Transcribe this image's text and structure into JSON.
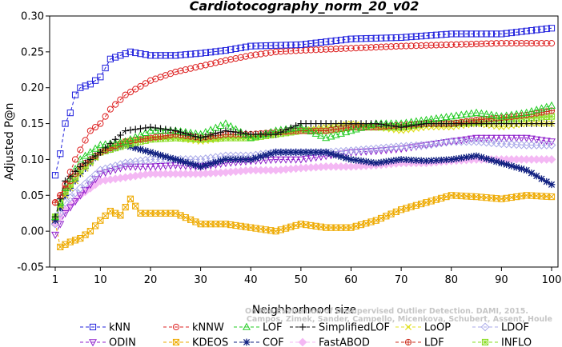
{
  "chart_data": {
    "type": "line",
    "title": "Cardiotocography_norm_20_v02",
    "xlabel": "Neighborhood size",
    "ylabel": "Adjusted P@n",
    "xlim": [
      1,
      100
    ],
    "ylim": [
      -0.05,
      0.3
    ],
    "x_ticks": [
      1,
      10,
      20,
      30,
      40,
      50,
      60,
      70,
      80,
      90,
      100
    ],
    "y_ticks": [
      "-0.05",
      "0.00",
      "0.05",
      "0.10",
      "0.15",
      "0.20",
      "0.25",
      "0.30"
    ],
    "x": {
      "start": 1,
      "end": 100,
      "step": 1
    },
    "watermark": [
      "Campos, Zimek, Sander, Campello, Micenkova, Schubert, Assent, Houle",
      "On the Evaluation of Unsupervised Outlier Detection. DAMI, 2015."
    ],
    "series": [
      {
        "name": "kNN",
        "color": "#2020dd",
        "marker": "square",
        "dash": "4,3",
        "keypoints": [
          [
            1,
            0.078
          ],
          [
            2,
            0.108
          ],
          [
            3,
            0.15
          ],
          [
            4,
            0.165
          ],
          [
            5,
            0.19
          ],
          [
            6,
            0.2
          ],
          [
            8,
            0.205
          ],
          [
            10,
            0.215
          ],
          [
            12,
            0.24
          ],
          [
            14,
            0.245
          ],
          [
            16,
            0.25
          ],
          [
            20,
            0.245
          ],
          [
            25,
            0.245
          ],
          [
            30,
            0.248
          ],
          [
            35,
            0.252
          ],
          [
            40,
            0.258
          ],
          [
            50,
            0.26
          ],
          [
            60,
            0.268
          ],
          [
            70,
            0.27
          ],
          [
            80,
            0.275
          ],
          [
            90,
            0.275
          ],
          [
            100,
            0.283
          ]
        ]
      },
      {
        "name": "kNNW",
        "color": "#dd2020",
        "marker": "circle",
        "dash": "4,3",
        "keypoints": [
          [
            1,
            0.04
          ],
          [
            2,
            0.05
          ],
          [
            3,
            0.065
          ],
          [
            5,
            0.1
          ],
          [
            8,
            0.14
          ],
          [
            10,
            0.15
          ],
          [
            12,
            0.17
          ],
          [
            15,
            0.19
          ],
          [
            20,
            0.21
          ],
          [
            25,
            0.222
          ],
          [
            30,
            0.23
          ],
          [
            35,
            0.238
          ],
          [
            40,
            0.245
          ],
          [
            45,
            0.25
          ],
          [
            50,
            0.252
          ],
          [
            60,
            0.255
          ],
          [
            70,
            0.258
          ],
          [
            80,
            0.26
          ],
          [
            90,
            0.262
          ],
          [
            100,
            0.262
          ]
        ]
      },
      {
        "name": "LOF",
        "color": "#22cc22",
        "marker": "triangle",
        "dash": "4,3",
        "keypoints": [
          [
            1,
            0.02
          ],
          [
            3,
            0.06
          ],
          [
            6,
            0.1
          ],
          [
            10,
            0.12
          ],
          [
            15,
            0.125
          ],
          [
            20,
            0.14
          ],
          [
            25,
            0.14
          ],
          [
            30,
            0.135
          ],
          [
            35,
            0.15
          ],
          [
            40,
            0.13
          ],
          [
            45,
            0.14
          ],
          [
            50,
            0.145
          ],
          [
            55,
            0.13
          ],
          [
            60,
            0.14
          ],
          [
            65,
            0.15
          ],
          [
            70,
            0.15
          ],
          [
            75,
            0.155
          ],
          [
            80,
            0.16
          ],
          [
            85,
            0.165
          ],
          [
            90,
            0.16
          ],
          [
            95,
            0.165
          ],
          [
            100,
            0.175
          ]
        ]
      },
      {
        "name": "SimplifiedLOF",
        "color": "#111111",
        "marker": "plus",
        "dash": "4,3",
        "keypoints": [
          [
            1,
            0.02
          ],
          [
            3,
            0.07
          ],
          [
            6,
            0.09
          ],
          [
            10,
            0.11
          ],
          [
            15,
            0.14
          ],
          [
            20,
            0.145
          ],
          [
            25,
            0.14
          ],
          [
            30,
            0.13
          ],
          [
            35,
            0.14
          ],
          [
            40,
            0.135
          ],
          [
            45,
            0.135
          ],
          [
            50,
            0.15
          ],
          [
            55,
            0.15
          ],
          [
            60,
            0.15
          ],
          [
            65,
            0.15
          ],
          [
            70,
            0.145
          ],
          [
            75,
            0.15
          ],
          [
            80,
            0.15
          ],
          [
            90,
            0.15
          ],
          [
            100,
            0.15
          ]
        ]
      },
      {
        "name": "LoOP",
        "color": "#e0e020",
        "marker": "x",
        "dash": "4,3",
        "keypoints": [
          [
            1,
            0.02
          ],
          [
            3,
            0.05
          ],
          [
            6,
            0.08
          ],
          [
            10,
            0.11
          ],
          [
            15,
            0.125
          ],
          [
            20,
            0.13
          ],
          [
            25,
            0.13
          ],
          [
            30,
            0.125
          ],
          [
            35,
            0.13
          ],
          [
            40,
            0.13
          ],
          [
            45,
            0.135
          ],
          [
            50,
            0.14
          ],
          [
            55,
            0.145
          ],
          [
            60,
            0.15
          ],
          [
            65,
            0.145
          ],
          [
            70,
            0.14
          ],
          [
            75,
            0.145
          ],
          [
            80,
            0.145
          ],
          [
            85,
            0.15
          ],
          [
            90,
            0.145
          ],
          [
            95,
            0.15
          ],
          [
            100,
            0.15
          ]
        ]
      },
      {
        "name": "LDOF",
        "color": "#a8a8e8",
        "marker": "diamond",
        "dash": "4,3",
        "keypoints": [
          [
            1,
            0.01
          ],
          [
            3,
            0.04
          ],
          [
            6,
            0.06
          ],
          [
            10,
            0.085
          ],
          [
            15,
            0.095
          ],
          [
            20,
            0.1
          ],
          [
            25,
            0.1
          ],
          [
            30,
            0.1
          ],
          [
            35,
            0.105
          ],
          [
            40,
            0.105
          ],
          [
            45,
            0.11
          ],
          [
            50,
            0.11
          ],
          [
            55,
            0.11
          ],
          [
            60,
            0.112
          ],
          [
            65,
            0.115
          ],
          [
            70,
            0.118
          ],
          [
            75,
            0.12
          ],
          [
            80,
            0.125
          ],
          [
            85,
            0.125
          ],
          [
            90,
            0.122
          ],
          [
            95,
            0.12
          ],
          [
            100,
            0.12
          ]
        ]
      },
      {
        "name": "ODIN",
        "color": "#9020cc",
        "marker": "triangle-down",
        "dash": "4,3",
        "keypoints": [
          [
            1,
            -0.005
          ],
          [
            3,
            0.025
          ],
          [
            6,
            0.05
          ],
          [
            10,
            0.08
          ],
          [
            15,
            0.09
          ],
          [
            20,
            0.09
          ],
          [
            25,
            0.092
          ],
          [
            30,
            0.09
          ],
          [
            35,
            0.095
          ],
          [
            40,
            0.098
          ],
          [
            45,
            0.1
          ],
          [
            50,
            0.1
          ],
          [
            55,
            0.105
          ],
          [
            60,
            0.11
          ],
          [
            65,
            0.112
          ],
          [
            70,
            0.115
          ],
          [
            75,
            0.12
          ],
          [
            80,
            0.125
          ],
          [
            85,
            0.13
          ],
          [
            90,
            0.13
          ],
          [
            95,
            0.13
          ],
          [
            100,
            0.125
          ]
        ]
      },
      {
        "name": "KDEOS",
        "color": "#eeaa00",
        "marker": "square-x",
        "dash": "4,3",
        "keypoints": [
          [
            1,
            0.012
          ],
          [
            2,
            -0.022
          ],
          [
            4,
            -0.015
          ],
          [
            6,
            -0.01
          ],
          [
            8,
            0.0
          ],
          [
            10,
            0.015
          ],
          [
            12,
            0.028
          ],
          [
            14,
            0.022
          ],
          [
            16,
            0.045
          ],
          [
            18,
            0.025
          ],
          [
            20,
            0.025
          ],
          [
            25,
            0.025
          ],
          [
            30,
            0.01
          ],
          [
            35,
            0.01
          ],
          [
            40,
            0.005
          ],
          [
            45,
            0.0
          ],
          [
            50,
            0.01
          ],
          [
            55,
            0.005
          ],
          [
            60,
            0.005
          ],
          [
            65,
            0.015
          ],
          [
            70,
            0.03
          ],
          [
            75,
            0.04
          ],
          [
            80,
            0.05
          ],
          [
            85,
            0.048
          ],
          [
            90,
            0.045
          ],
          [
            95,
            0.05
          ],
          [
            100,
            0.048
          ]
        ]
      },
      {
        "name": "COF",
        "color": "#102080",
        "marker": "asterisk",
        "dash": "4,3",
        "keypoints": [
          [
            1,
            0.015
          ],
          [
            3,
            0.05
          ],
          [
            6,
            0.08
          ],
          [
            10,
            0.11
          ],
          [
            15,
            0.12
          ],
          [
            20,
            0.11
          ],
          [
            25,
            0.1
          ],
          [
            30,
            0.09
          ],
          [
            35,
            0.1
          ],
          [
            40,
            0.1
          ],
          [
            45,
            0.11
          ],
          [
            50,
            0.11
          ],
          [
            55,
            0.11
          ],
          [
            60,
            0.1
          ],
          [
            65,
            0.095
          ],
          [
            70,
            0.1
          ],
          [
            75,
            0.098
          ],
          [
            80,
            0.1
          ],
          [
            85,
            0.105
          ],
          [
            90,
            0.095
          ],
          [
            95,
            0.085
          ],
          [
            100,
            0.065
          ]
        ]
      },
      {
        "name": "FastABOD",
        "color": "#f4b8f4",
        "marker": "diamond-filled",
        "dash": "4,3",
        "keypoints": [
          [
            1,
            0.01
          ],
          [
            3,
            0.03
          ],
          [
            6,
            0.05
          ],
          [
            10,
            0.07
          ],
          [
            15,
            0.075
          ],
          [
            20,
            0.08
          ],
          [
            25,
            0.08
          ],
          [
            30,
            0.08
          ],
          [
            35,
            0.082
          ],
          [
            40,
            0.085
          ],
          [
            45,
            0.085
          ],
          [
            50,
            0.088
          ],
          [
            55,
            0.09
          ],
          [
            60,
            0.09
          ],
          [
            65,
            0.092
          ],
          [
            70,
            0.095
          ],
          [
            75,
            0.095
          ],
          [
            80,
            0.098
          ],
          [
            85,
            0.1
          ],
          [
            90,
            0.1
          ],
          [
            95,
            0.1
          ],
          [
            100,
            0.1
          ]
        ]
      },
      {
        "name": "LDF",
        "color": "#cc3020",
        "marker": "circle-plus",
        "dash": "4,3",
        "keypoints": [
          [
            1,
            0.04
          ],
          [
            3,
            0.06
          ],
          [
            6,
            0.09
          ],
          [
            10,
            0.11
          ],
          [
            15,
            0.125
          ],
          [
            20,
            0.13
          ],
          [
            25,
            0.135
          ],
          [
            30,
            0.13
          ],
          [
            35,
            0.135
          ],
          [
            40,
            0.135
          ],
          [
            45,
            0.138
          ],
          [
            50,
            0.14
          ],
          [
            55,
            0.14
          ],
          [
            60,
            0.145
          ],
          [
            65,
            0.145
          ],
          [
            70,
            0.148
          ],
          [
            75,
            0.15
          ],
          [
            80,
            0.15
          ],
          [
            85,
            0.155
          ],
          [
            90,
            0.158
          ],
          [
            95,
            0.162
          ],
          [
            100,
            0.168
          ]
        ]
      },
      {
        "name": "INFLO",
        "color": "#88dd22",
        "marker": "square-cross",
        "dash": "4,3",
        "keypoints": [
          [
            1,
            0.02
          ],
          [
            3,
            0.055
          ],
          [
            6,
            0.085
          ],
          [
            10,
            0.11
          ],
          [
            15,
            0.12
          ],
          [
            20,
            0.128
          ],
          [
            25,
            0.13
          ],
          [
            30,
            0.128
          ],
          [
            35,
            0.13
          ],
          [
            40,
            0.13
          ],
          [
            45,
            0.135
          ],
          [
            50,
            0.14
          ],
          [
            55,
            0.14
          ],
          [
            60,
            0.145
          ],
          [
            65,
            0.145
          ],
          [
            70,
            0.145
          ],
          [
            75,
            0.15
          ],
          [
            80,
            0.15
          ],
          [
            85,
            0.152
          ],
          [
            90,
            0.155
          ],
          [
            95,
            0.158
          ],
          [
            100,
            0.16
          ]
        ]
      }
    ],
    "legend_order": [
      [
        "kNN",
        "kNNW",
        "LOF",
        "SimplifiedLOF",
        "LoOP",
        "LDOF"
      ],
      [
        "ODIN",
        "KDEOS",
        "COF",
        "FastABOD",
        "LDF",
        "INFLO"
      ]
    ],
    "legend_position": "bottom",
    "grid": false
  }
}
